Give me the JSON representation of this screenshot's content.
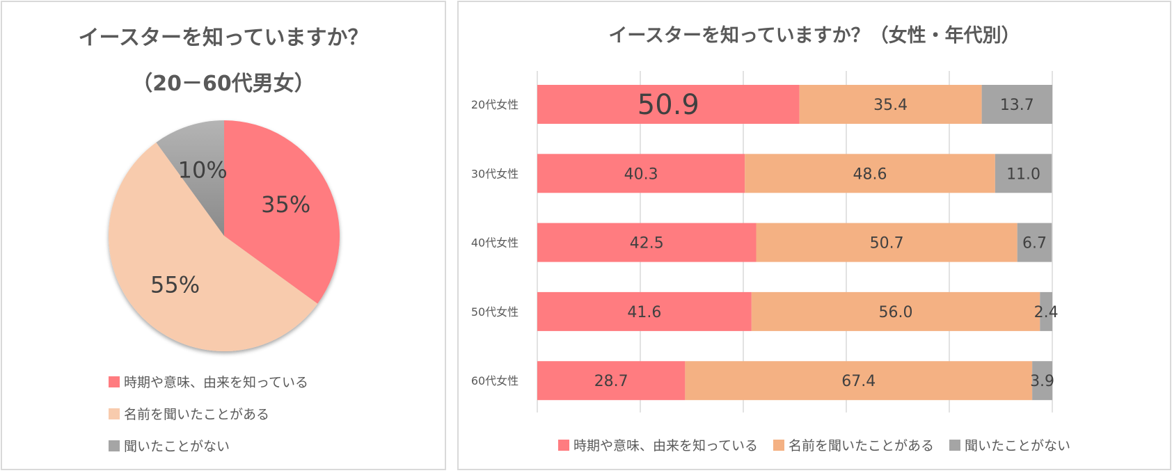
{
  "chart_data": [
    {
      "type": "pie",
      "title": "イースターを知っていますか？",
      "subtitle": "（20－60代男女）",
      "categories": [
        "時期や意味、由来を知っている",
        "名前を聞いたことがある",
        "聞いたことがない"
      ],
      "values": [
        35,
        55,
        10
      ],
      "labels": [
        "35%",
        "55%",
        "10%"
      ],
      "colors": [
        "#FF7C80",
        "#F8CBAD",
        "#A5A5A5"
      ],
      "legend": "bottom"
    },
    {
      "type": "bar",
      "orientation": "horizontal",
      "stacked": true,
      "title": "イースターを知っていますか？（女性・年代別）",
      "categories": [
        "20代女性",
        "30代女性",
        "40代女性",
        "50代女性",
        "60代女性"
      ],
      "series": [
        {
          "name": "時期や意味、由来を知っている",
          "values": [
            50.9,
            40.3,
            42.5,
            41.6,
            28.7
          ],
          "color": "#FF7C80"
        },
        {
          "name": "名前を聞いたことがある",
          "values": [
            35.4,
            48.6,
            50.7,
            56.0,
            67.4
          ],
          "color": "#F4B183"
        },
        {
          "name": "聞いたことがない",
          "values": [
            13.7,
            11.0,
            6.7,
            2.4,
            3.9
          ],
          "color": "#A5A5A5"
        }
      ],
      "xlim": [
        0,
        100
      ],
      "grid": true,
      "legend": "bottom"
    }
  ]
}
